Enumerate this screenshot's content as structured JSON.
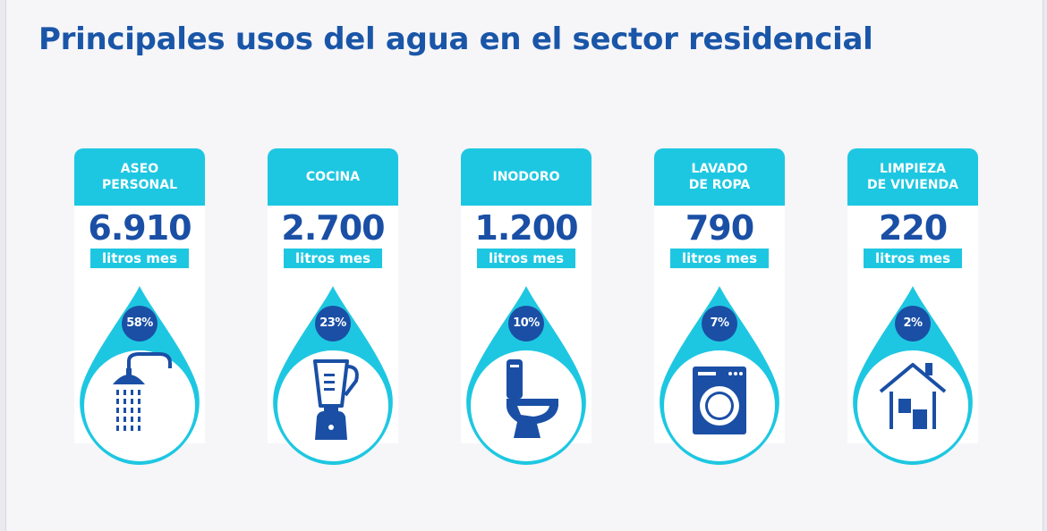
{
  "title": "Principales usos del agua en el sector residencial",
  "colors": {
    "title": "#1a56a8",
    "accent": "#1ec7e1",
    "dark_blue": "#1a4fa5",
    "background": "#f6f5f8"
  },
  "cards": [
    {
      "label": "ASEO\nPERSONAL",
      "value": "6.910",
      "unit": "litros mes",
      "percent": "58%",
      "icon": "shower-icon"
    },
    {
      "label": "COCINA",
      "value": "2.700",
      "unit": "litros mes",
      "percent": "23%",
      "icon": "blender-icon"
    },
    {
      "label": "INODORO",
      "value": "1.200",
      "unit": "litros mes",
      "percent": "10%",
      "icon": "toilet-icon"
    },
    {
      "label": "LAVADO\nDE ROPA",
      "value": "790",
      "unit": "litros mes",
      "percent": "7%",
      "icon": "washing-machine-icon"
    },
    {
      "label": "LIMPIEZA\nDE VIVIENDA",
      "value": "220",
      "unit": "litros mes",
      "percent": "2%",
      "icon": "house-icon"
    }
  ]
}
